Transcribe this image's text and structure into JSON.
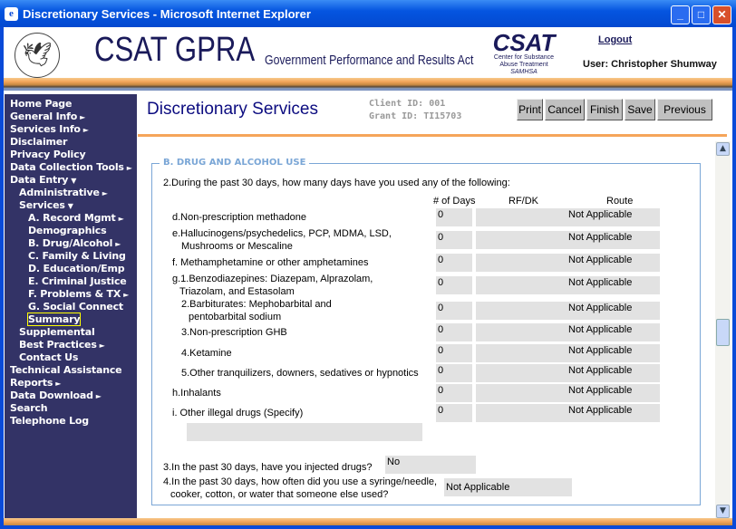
{
  "window": {
    "title": "Discretionary Services - Microsoft Internet Explorer",
    "buttons": {
      "minimize": "_",
      "maximize": "□",
      "close": "✕"
    }
  },
  "header": {
    "brand": "CSAT GPRA",
    "brand_sub": "Government Performance and Results Act",
    "csat_logo": "CSAT",
    "csat_lines": [
      "Center for Substance",
      "Abuse Treatment",
      "SAMHSA"
    ],
    "logout": "Logout",
    "user": "User: Christopher Shumway"
  },
  "sidebar": {
    "items": [
      {
        "label": "Home Page",
        "arrow": ""
      },
      {
        "label": "General Info",
        "arrow": "►"
      },
      {
        "label": "Services Info",
        "arrow": "►"
      },
      {
        "label": "Disclaimer",
        "arrow": ""
      },
      {
        "label": "Privacy Policy",
        "arrow": ""
      },
      {
        "label": "Data Collection Tools",
        "arrow": "►"
      },
      {
        "label": "Data Entry",
        "arrow": "▼"
      },
      {
        "label": "Administrative",
        "arrow": "►"
      },
      {
        "label": "Services",
        "arrow": "▼"
      },
      {
        "label": "A. Record Mgmt",
        "arrow": "►"
      },
      {
        "label": "Demographics",
        "arrow": ""
      },
      {
        "label": "B. Drug/Alcohol",
        "arrow": "►"
      },
      {
        "label": "C. Family & Living",
        "arrow": ""
      },
      {
        "label": "D. Education/Emp",
        "arrow": ""
      },
      {
        "label": "E. Criminal Justice",
        "arrow": ""
      },
      {
        "label": "F. Problems & TX",
        "arrow": "►"
      },
      {
        "label": "G. Social Connect",
        "arrow": ""
      },
      {
        "label": "Summary",
        "arrow": "",
        "selected": true
      },
      {
        "label": "Supplemental",
        "arrow": ""
      },
      {
        "label": "Best Practices",
        "arrow": "►"
      },
      {
        "label": "Contact Us",
        "arrow": ""
      },
      {
        "label": "Technical Assistance",
        "arrow": ""
      },
      {
        "label": "Reports",
        "arrow": "►"
      },
      {
        "label": "Data Download",
        "arrow": "►"
      },
      {
        "label": "Search",
        "arrow": ""
      },
      {
        "label": "Telephone Log",
        "arrow": ""
      }
    ]
  },
  "main": {
    "title": "Discretionary Services",
    "client_id": "Client ID: 001",
    "grant_id": "Grant ID: TI15703",
    "buttons": [
      "Print",
      "Cancel",
      "Finish",
      "Save",
      "Previous"
    ],
    "section": "B. DRUG AND ALCOHOL USE",
    "q2": "2.During the past 30 days, how many days have you used any of the following:",
    "columns": [
      "# of Days",
      "RF/DK",
      "Route"
    ],
    "rows": [
      {
        "label": [
          "d.Non-prescription methadone"
        ],
        "days": "0",
        "rfdk": "",
        "route": "Not Applicable"
      },
      {
        "label": [
          "e.Hallucinogens/psychedelics, PCP, MDMA, LSD,",
          "Mushrooms or Mescaline"
        ],
        "days": "0",
        "rfdk": "",
        "route": "Not Applicable"
      },
      {
        "label": [
          "f. Methamphetamine or other amphetamines"
        ],
        "days": "0",
        "rfdk": "",
        "route": "Not Applicable"
      },
      {
        "label": [
          "g.1.Benzodiazepines: Diazepam, Alprazolam,",
          "Triazolam, and Estasolam"
        ],
        "days": "0",
        "rfdk": "",
        "route": "Not Applicable"
      },
      {
        "label": [
          "2.Barbiturates: Mephobarbital and",
          "pentobarbital sodium"
        ],
        "days": "0",
        "rfdk": "",
        "route": "Not Applicable"
      },
      {
        "label": [
          "3.Non-prescription GHB"
        ],
        "days": "0",
        "rfdk": "",
        "route": "Not Applicable"
      },
      {
        "label": [
          "4.Ketamine"
        ],
        "days": "0",
        "rfdk": "",
        "route": "Not Applicable"
      },
      {
        "label": [
          "5.Other tranquilizers, downers, sedatives or hypnotics"
        ],
        "days": "0",
        "rfdk": "",
        "route": "Not Applicable"
      },
      {
        "label": [
          "h.Inhalants"
        ],
        "days": "0",
        "rfdk": "",
        "route": "Not Applicable"
      },
      {
        "label": [
          "i. Other illegal drugs (Specify)"
        ],
        "days": "0",
        "rfdk": "",
        "route": "Not Applicable"
      }
    ],
    "specify": "",
    "q3": "3.In the past 30 days, have you injected drugs?",
    "q3_value": "No",
    "q4": [
      "4.In the past 30 days, how often did you use a syringe/needle,",
      "cooker, cotton, or water that someone else used?"
    ],
    "q4_value": "Not Applicable"
  }
}
